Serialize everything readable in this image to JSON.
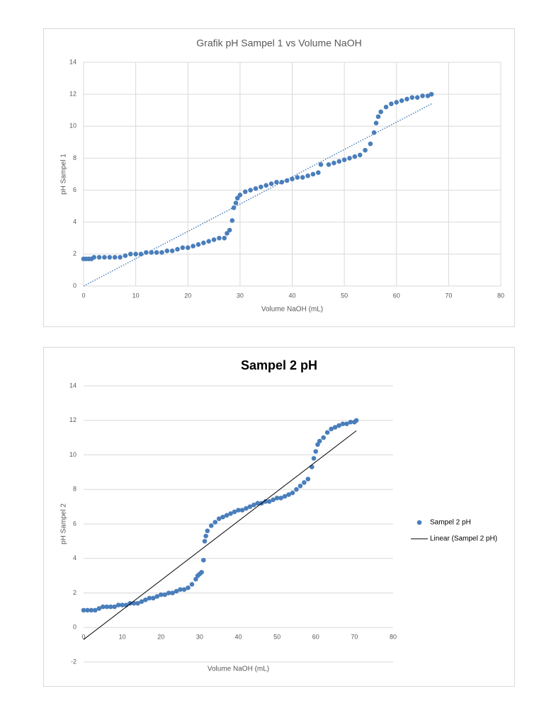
{
  "chart_data": [
    {
      "type": "scatter",
      "title": "Grafik pH Sampel 1 vs Volume NaOH",
      "x_label": "Volume NaOH (mL)",
      "y_label": "pH Sampel 1",
      "xlim": [
        0,
        80
      ],
      "xticks": [
        0,
        10,
        20,
        30,
        40,
        50,
        60,
        70,
        80
      ],
      "ylim": [
        0,
        14
      ],
      "yticks": [
        0,
        2,
        4,
        6,
        8,
        10,
        12,
        14
      ],
      "xgrid": true,
      "ygrid": true,
      "series": [
        {
          "mode": "markers",
          "color": "#4a7ebb",
          "x": [
            0,
            0.5,
            1,
            1.5,
            2,
            3,
            4,
            5,
            6,
            7,
            8,
            9,
            10,
            11,
            12,
            13,
            14,
            15,
            16,
            17,
            18,
            19,
            20,
            21,
            22,
            23,
            24,
            25,
            26,
            27,
            27.5,
            28,
            28.5,
            28.8,
            29.2,
            29.5,
            30,
            31,
            32,
            33,
            34,
            35,
            36,
            37,
            38,
            39,
            40,
            41,
            42,
            43,
            44,
            45,
            45.5,
            47,
            48,
            49,
            50,
            51,
            52,
            53,
            54,
            55,
            55.7,
            56.1,
            56.5,
            57,
            58,
            59,
            60,
            61,
            62,
            63,
            64,
            65,
            66,
            66.7
          ],
          "values": [
            1.7,
            1.7,
            1.7,
            1.7,
            1.8,
            1.8,
            1.8,
            1.8,
            1.8,
            1.8,
            1.9,
            2.0,
            2.0,
            2.0,
            2.1,
            2.1,
            2.1,
            2.1,
            2.2,
            2.2,
            2.3,
            2.4,
            2.4,
            2.5,
            2.6,
            2.7,
            2.8,
            2.9,
            3.0,
            3.0,
            3.3,
            3.5,
            4.1,
            4.9,
            5.2,
            5.5,
            5.7,
            5.9,
            6.0,
            6.1,
            6.2,
            6.3,
            6.4,
            6.5,
            6.5,
            6.6,
            6.7,
            6.8,
            6.8,
            6.9,
            7.0,
            7.1,
            7.6,
            7.6,
            7.7,
            7.8,
            7.9,
            8.0,
            8.1,
            8.2,
            8.5,
            8.9,
            9.6,
            10.2,
            10.6,
            10.9,
            11.2,
            11.4,
            11.5,
            11.6,
            11.7,
            11.8,
            11.8,
            11.9,
            11.9,
            12.0
          ]
        },
        {
          "mode": "line",
          "color": "#4a7ebb",
          "dash": "dotted",
          "x": [
            0,
            66.7
          ],
          "values": [
            0,
            11.4
          ]
        }
      ]
    },
    {
      "type": "scatter",
      "title": "Sampel 2 pH",
      "x_label": "Volume NaOH (mL)",
      "y_label": "pH Sampel 2",
      "xlim": [
        0,
        80
      ],
      "xticks": [
        0,
        10,
        20,
        30,
        40,
        50,
        60,
        70,
        80
      ],
      "ylim": [
        -2,
        14
      ],
      "yticks": [
        -2,
        0,
        2,
        4,
        6,
        8,
        10,
        12,
        14
      ],
      "xgrid": false,
      "ygrid": true,
      "legend": "right",
      "series": [
        {
          "name": "Sampel 2 pH",
          "mode": "markers",
          "color": "#4a7ebb",
          "x": [
            0,
            1,
            2,
            3,
            4,
            5,
            6,
            7,
            8,
            9,
            10,
            11,
            12,
            13,
            14,
            15,
            16,
            17,
            18,
            19,
            20,
            21,
            22,
            23,
            24,
            25,
            26,
            27,
            28,
            29,
            29.5,
            30,
            30.5,
            31,
            31.3,
            31.6,
            32,
            33,
            34,
            35,
            36,
            37,
            38,
            39,
            40,
            41,
            42,
            43,
            44,
            45,
            46,
            47,
            48,
            49,
            50,
            51,
            52,
            53,
            54,
            55,
            56,
            57,
            58,
            59,
            59.5,
            60,
            60.5,
            61,
            62,
            63,
            64,
            65,
            66,
            67,
            68,
            69,
            70,
            70.5
          ],
          "values": [
            1.0,
            1.0,
            1.0,
            1.0,
            1.1,
            1.2,
            1.2,
            1.2,
            1.2,
            1.3,
            1.3,
            1.3,
            1.4,
            1.4,
            1.4,
            1.5,
            1.6,
            1.7,
            1.7,
            1.8,
            1.9,
            1.9,
            2.0,
            2.0,
            2.1,
            2.2,
            2.2,
            2.3,
            2.5,
            2.8,
            3.0,
            3.1,
            3.2,
            3.9,
            5.0,
            5.3,
            5.6,
            5.9,
            6.1,
            6.3,
            6.4,
            6.5,
            6.6,
            6.7,
            6.8,
            6.8,
            6.9,
            7.0,
            7.1,
            7.2,
            7.2,
            7.3,
            7.3,
            7.4,
            7.5,
            7.5,
            7.6,
            7.7,
            7.8,
            8.0,
            8.2,
            8.4,
            8.6,
            9.3,
            9.8,
            10.2,
            10.6,
            10.8,
            11.0,
            11.3,
            11.5,
            11.6,
            11.7,
            11.8,
            11.8,
            11.9,
            11.9,
            12.0
          ]
        },
        {
          "name": "Linear (Sampel 2 pH)",
          "mode": "line",
          "color": "#000000",
          "dash": "solid",
          "x": [
            0,
            70.5
          ],
          "values": [
            -0.7,
            11.4
          ]
        }
      ]
    }
  ]
}
